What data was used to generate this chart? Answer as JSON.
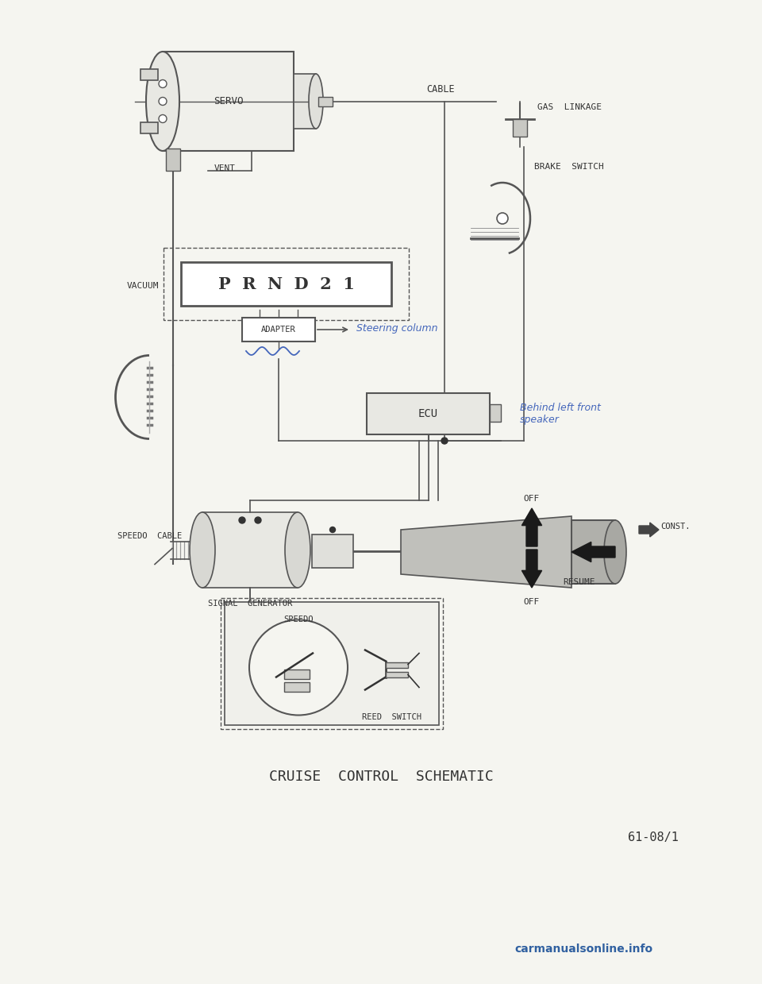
{
  "bg_color": "#f5f5f0",
  "line_color": "#555555",
  "dark_color": "#333333",
  "blue_handwriting_color": "#4466bb",
  "title": "CRUISE  CONTROL  SCHEMATIC",
  "page_ref": "61-08/1",
  "watermark": "carmanualsonline.info",
  "labels": {
    "servo": "SERVO",
    "cable": "CABLE",
    "gas_linkage": "GAS  LINKAGE",
    "brake_switch": "BRAKE  SWITCH",
    "vacuum": "VACUUM",
    "vent": "VENT",
    "prnd21": "P  R  N  D  2  1",
    "adapter": "ADAPTER",
    "steering_col": "Steering column",
    "ecu": "ECU",
    "behind_left": "Behind left front\nspeaker",
    "speedo_cable": "SPEEDO  CABLE",
    "signal_gen": "SIGNAL  GENERATOR",
    "speedo": "SPEEDO",
    "reed_switch": "REED  SWITCH",
    "off_top": "OFF",
    "const": "CONST.",
    "resume": "RESUME",
    "off_bottom": "OFF"
  }
}
